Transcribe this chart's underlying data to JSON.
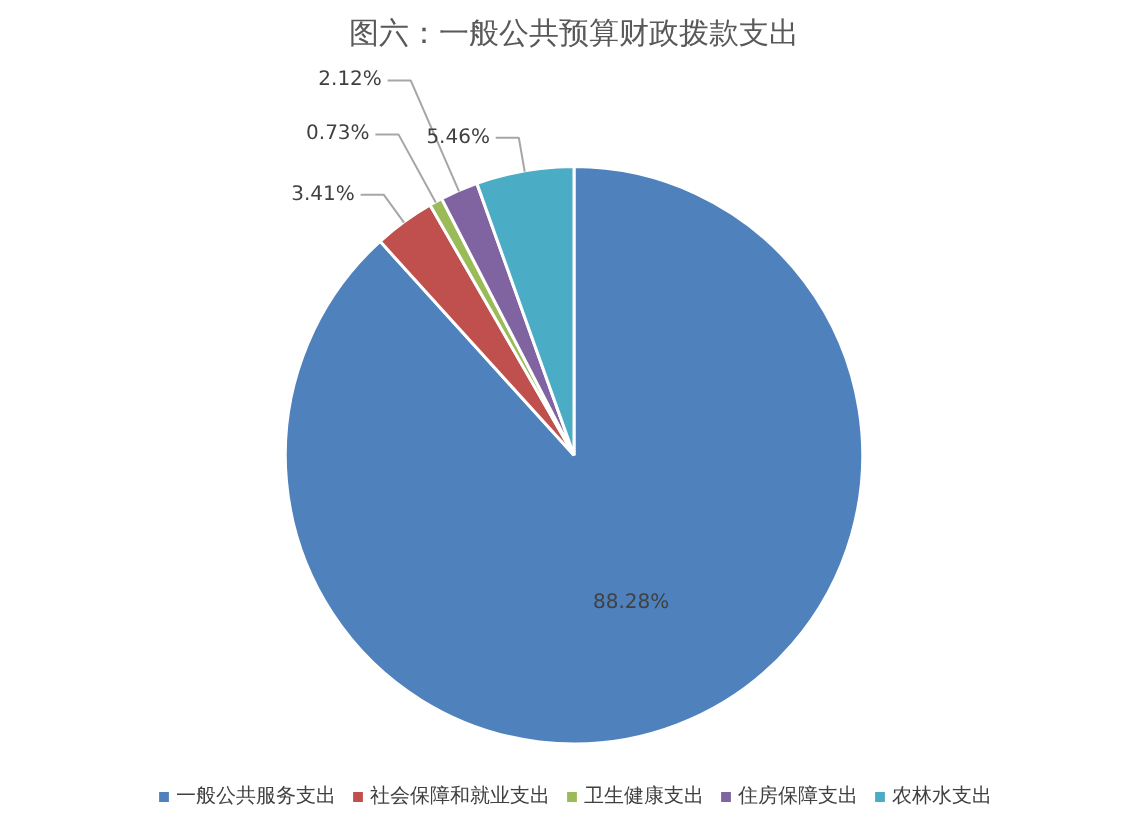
{
  "chart_data": {
    "type": "pie",
    "title": "图六：一般公共预算财政拨款支出",
    "categories": [
      "一般公共服务支出",
      "社会保障和就业支出",
      "卫生健康支出",
      "住房保障支出",
      "农林水支出"
    ],
    "values": [
      88.28,
      3.41,
      0.73,
      2.12,
      5.46
    ],
    "colors": [
      "#4f81bd",
      "#c0504d",
      "#9bbb59",
      "#8064a2",
      "#4bacc6"
    ],
    "value_labels": [
      "88.28%",
      "3.41%",
      "0.73%",
      "2.12%",
      "5.46%"
    ],
    "legend": "bottom"
  }
}
